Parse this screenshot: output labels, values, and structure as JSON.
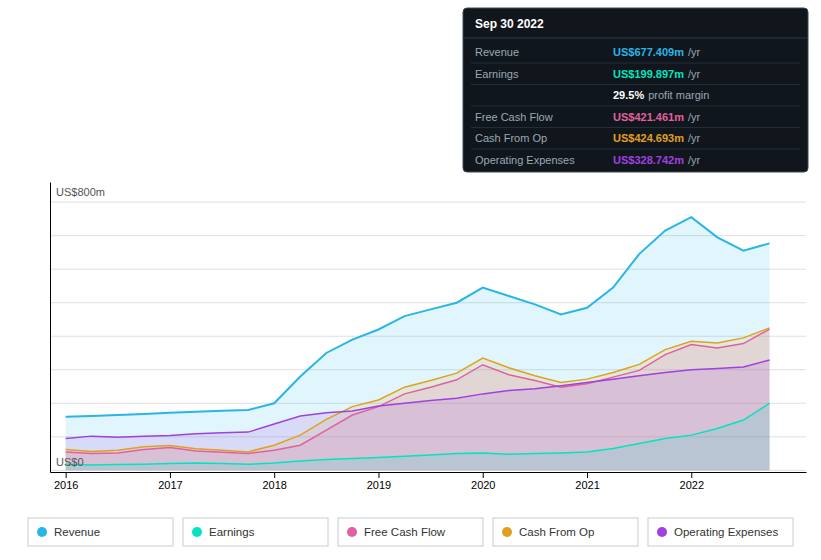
{
  "chart_data": {
    "type": "area",
    "stacked": false,
    "x": [
      2016,
      2016.25,
      2016.5,
      2016.75,
      2017,
      2017.25,
      2017.5,
      2017.75,
      2018,
      2018.25,
      2018.5,
      2018.75,
      2019,
      2019.25,
      2019.5,
      2019.75,
      2020,
      2020.25,
      2020.5,
      2020.75,
      2021,
      2021.25,
      2021.5,
      2021.75,
      2022,
      2022.25,
      2022.5,
      2022.75
    ],
    "xlim": [
      2015.85,
      2023.1
    ],
    "xticks": [
      2016,
      2017,
      2018,
      2019,
      2020,
      2021,
      2022
    ],
    "ylim": [
      -5,
      860
    ],
    "yticks": [
      0,
      100,
      200,
      300,
      400,
      500,
      600,
      700,
      800
    ],
    "grid": true,
    "tick_labels": "x",
    "legend": "bottom",
    "series": [
      {
        "name": "Revenue",
        "color": "#29b5e8",
        "values": [
          160,
          162,
          165,
          168,
          172,
          175,
          178,
          180,
          200,
          280,
          350,
          390,
          420,
          460,
          480,
          500,
          545,
          520,
          495,
          465,
          485,
          545,
          645,
          715,
          755,
          695,
          655,
          677
        ]
      },
      {
        "name": "Earnings",
        "color": "#00e5c0",
        "values": [
          18,
          16,
          17,
          18,
          20,
          22,
          20,
          18,
          22,
          28,
          32,
          35,
          38,
          42,
          46,
          50,
          52,
          48,
          50,
          52,
          55,
          65,
          80,
          95,
          105,
          125,
          150,
          200
        ]
      },
      {
        "name": "Free Cash Flow",
        "color": "#e060a0",
        "values": [
          55,
          50,
          52,
          62,
          68,
          58,
          54,
          50,
          60,
          75,
          120,
          165,
          190,
          228,
          248,
          270,
          315,
          285,
          268,
          248,
          258,
          278,
          298,
          345,
          375,
          365,
          378,
          421
        ]
      },
      {
        "name": "Cash From Op",
        "color": "#e0a020",
        "values": [
          62,
          56,
          60,
          70,
          74,
          64,
          60,
          55,
          75,
          105,
          152,
          190,
          210,
          248,
          268,
          290,
          335,
          306,
          282,
          262,
          272,
          292,
          316,
          360,
          385,
          380,
          395,
          425
        ]
      },
      {
        "name": "Operating Expenses",
        "color": "#a040e0",
        "values": [
          95,
          102,
          99,
          102,
          104,
          109,
          112,
          114,
          138,
          162,
          172,
          177,
          192,
          200,
          208,
          215,
          228,
          238,
          243,
          252,
          262,
          272,
          282,
          292,
          300,
          304,
          308,
          329
        ]
      }
    ],
    "annotations": [
      {
        "text": "US$800m"
      },
      {
        "text": "US$0"
      }
    ],
    "tooltip": {
      "title": "Sep 30 2022",
      "rows": [
        {
          "label": "Revenue",
          "value": "US$677.409m",
          "suffix": "/yr",
          "color": "#29b5e8"
        },
        {
          "label": "Earnings",
          "value": "US$199.897m",
          "suffix": "/yr",
          "color": "#00e5c0"
        },
        {
          "value": "29.5%",
          "suffix": "profit margin",
          "color": "#ffffff"
        },
        {
          "label": "Free Cash Flow",
          "value": "US$421.461m",
          "suffix": "/yr",
          "color": "#e060a0"
        },
        {
          "label": "Cash From Op",
          "value": "US$424.693m",
          "suffix": "/yr",
          "color": "#e0a020"
        },
        {
          "label": "Operating Expenses",
          "value": "US$328.742m",
          "suffix": "/yr",
          "color": "#a040e0"
        }
      ]
    }
  }
}
